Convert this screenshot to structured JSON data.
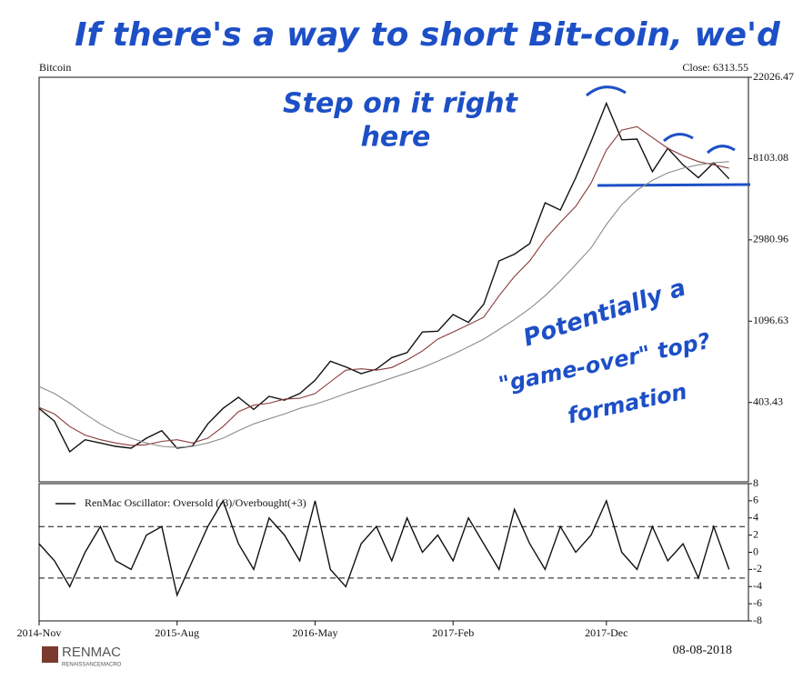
{
  "chart_data": [
    {
      "type": "line",
      "title": "Bitcoin",
      "subtitle": "Close: 6313.55",
      "log_scale": true,
      "x": [
        "2014-Nov",
        "2014-Dec",
        "2015-Jan",
        "2015-Feb",
        "2015-Mar",
        "2015-Apr",
        "2015-May",
        "2015-Jun",
        "2015-Jul",
        "2015-Aug",
        "2015-Sep",
        "2015-Oct",
        "2015-Nov",
        "2015-Dec",
        "2016-Jan",
        "2016-Feb",
        "2016-Mar",
        "2016-Apr",
        "2016-May",
        "2016-Jun",
        "2016-Jul",
        "2016-Aug",
        "2016-Sep",
        "2016-Oct",
        "2016-Nov",
        "2016-Dec",
        "2017-Jan",
        "2017-Feb",
        "2017-Mar",
        "2017-Apr",
        "2017-May",
        "2017-Jun",
        "2017-Jul",
        "2017-Aug",
        "2017-Sep",
        "2017-Oct",
        "2017-Nov",
        "2017-Dec",
        "2018-Jan",
        "2018-Feb",
        "2018-Mar",
        "2018-Apr",
        "2018-May",
        "2018-Jun",
        "2018-Jul",
        "2018-Aug"
      ],
      "xticks": [
        "2014-Nov",
        "2015-Aug",
        "2016-May",
        "2017-Feb",
        "2017-Dec"
      ],
      "series": [
        {
          "color": "#111111",
          "values": [
            375,
            320,
            220,
            255,
            245,
            235,
            230,
            260,
            285,
            230,
            236,
            310,
            375,
            430,
            370,
            435,
            415,
            450,
            530,
            670,
            625,
            575,
            608,
            700,
            745,
            960,
            970,
            1190,
            1080,
            1350,
            2300,
            2500,
            2850,
            4700,
            4300,
            6400,
            10000,
            16000,
            10200,
            10300,
            6900,
            9200,
            7500,
            6400,
            7700,
            6313.55
          ]
        },
        {
          "color": "#8b3a3a",
          "values": [
            380,
            350,
            300,
            270,
            255,
            245,
            238,
            240,
            250,
            255,
            245,
            260,
            300,
            360,
            390,
            400,
            420,
            425,
            450,
            520,
            600,
            610,
            600,
            620,
            680,
            760,
            880,
            960,
            1050,
            1150,
            1500,
            1900,
            2300,
            3000,
            3700,
            4500,
            6000,
            9000,
            11500,
            12000,
            10500,
            9200,
            8400,
            7800,
            7500,
            7200
          ]
        },
        {
          "color": "#8c8c8c",
          "values": [
            490,
            450,
            400,
            350,
            310,
            280,
            260,
            245,
            235,
            232,
            235,
            245,
            260,
            285,
            310,
            330,
            350,
            375,
            395,
            420,
            450,
            480,
            510,
            545,
            580,
            620,
            670,
            730,
            800,
            880,
            990,
            1120,
            1280,
            1500,
            1800,
            2200,
            2700,
            3600,
            4600,
            5500,
            6200,
            6800,
            7200,
            7500,
            7700,
            7800
          ]
        }
      ],
      "ylim": [
        152,
        22026.47
      ],
      "yticks": [
        403.43,
        1096.63,
        2980.96,
        8103.08,
        22026.47
      ]
    },
    {
      "type": "line",
      "legend": "upper left",
      "x": [
        "2014-Nov",
        "2014-Dec",
        "2015-Jan",
        "2015-Feb",
        "2015-Mar",
        "2015-Apr",
        "2015-May",
        "2015-Jun",
        "2015-Jul",
        "2015-Aug",
        "2015-Sep",
        "2015-Oct",
        "2015-Nov",
        "2015-Dec",
        "2016-Jan",
        "2016-Feb",
        "2016-Mar",
        "2016-Apr",
        "2016-May",
        "2016-Jun",
        "2016-Jul",
        "2016-Aug",
        "2016-Sep",
        "2016-Oct",
        "2016-Nov",
        "2016-Dec",
        "2017-Jan",
        "2017-Feb",
        "2017-Mar",
        "2017-Apr",
        "2017-May",
        "2017-Jun",
        "2017-Jul",
        "2017-Aug",
        "2017-Sep",
        "2017-Oct",
        "2017-Nov",
        "2017-Dec",
        "2018-Jan",
        "2018-Feb",
        "2018-Mar",
        "2018-Apr",
        "2018-May",
        "2018-Jun",
        "2018-Jul",
        "2018-Aug"
      ],
      "series": [
        {
          "name": "RenMac Oscillator: Oversold (-3)/Overbought(+3)",
          "color": "#111111",
          "values": [
            1,
            -1,
            -4,
            0,
            3,
            -1,
            -2,
            2,
            3,
            -5,
            -1,
            3,
            6,
            1,
            -2,
            4,
            2,
            -1,
            6,
            -2,
            -4,
            1,
            3,
            -1,
            4,
            0,
            2,
            -1,
            4,
            1,
            -2,
            5,
            1,
            -2,
            3,
            0,
            2,
            6,
            0,
            -2,
            3,
            -1,
            1,
            -3,
            3,
            -2
          ]
        }
      ],
      "hlines": [
        3,
        -3
      ],
      "ylim": [
        -8,
        8
      ],
      "yticks": [
        -8,
        -6,
        -4,
        -2,
        0,
        2,
        4,
        6,
        8
      ]
    }
  ],
  "annotations": [
    "If there's a way to short Bit-coin, we'd",
    "Step on it right",
    "here",
    "Potentially a",
    "\"game-over\" top?",
    "formation"
  ],
  "footer": {
    "logo": "RENMAC",
    "logo_sub": "RENAISSANCEMACRO",
    "date": "08-08-2018"
  }
}
